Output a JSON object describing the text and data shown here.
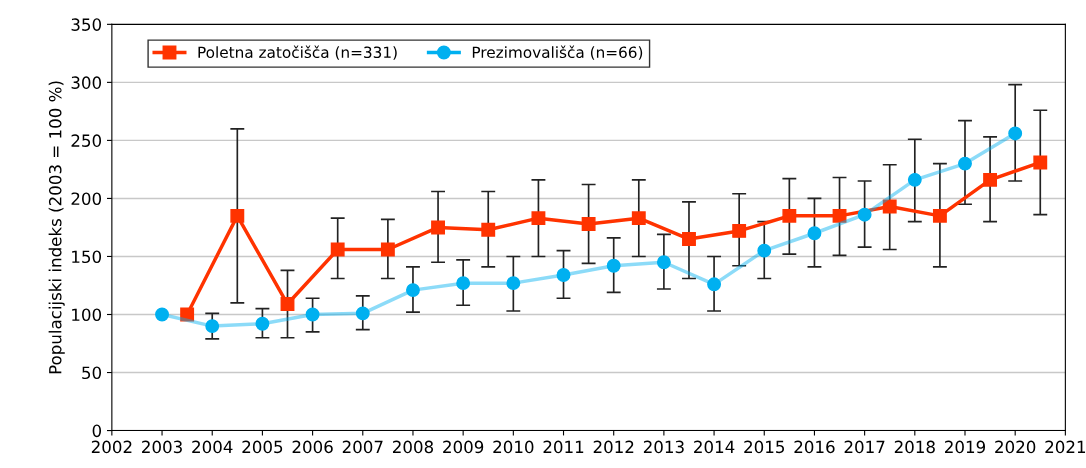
{
  "chart_data": {
    "type": "line",
    "ylabel": "Populacijski indeks (2003 = 100 %)",
    "xlim": [
      2002,
      2021
    ],
    "xticks": [
      2002,
      2003,
      2004,
      2005,
      2006,
      2007,
      2008,
      2009,
      2010,
      2011,
      2012,
      2013,
      2014,
      2015,
      2016,
      2017,
      2018,
      2019,
      2020,
      2021
    ],
    "ylim": [
      0,
      350
    ],
    "yticks": [
      0,
      50,
      100,
      150,
      200,
      250,
      300,
      350
    ],
    "grid": "y",
    "legend": "top left",
    "line_style": "solid",
    "series": [
      {
        "name": "Poletna zatočišča (n=331)",
        "color": "#ff3300",
        "marker": "square",
        "x": [
          2003.5,
          2004.5,
          2005.5,
          2006.5,
          2007.5,
          2008.5,
          2009.5,
          2010.5,
          2011.5,
          2012.5,
          2013.5,
          2014.5,
          2015.5,
          2016.5,
          2017.5,
          2018.5,
          2019.5,
          2020.5
        ],
        "values": [
          100,
          185,
          109,
          156,
          156,
          175,
          173,
          183,
          178,
          183,
          165,
          172,
          185,
          185,
          193,
          185,
          216,
          231
        ],
        "errors": [
          null,
          [
            110,
            260
          ],
          [
            80,
            138
          ],
          [
            131,
            183
          ],
          [
            131,
            182
          ],
          [
            145,
            206
          ],
          [
            141,
            206
          ],
          [
            150,
            216
          ],
          [
            144,
            212
          ],
          [
            150,
            216
          ],
          [
            131,
            197
          ],
          [
            142,
            204
          ],
          [
            152,
            217
          ],
          [
            151,
            218
          ],
          [
            156,
            229
          ],
          [
            141,
            230
          ],
          [
            180,
            253
          ],
          [
            186,
            276
          ]
        ]
      },
      {
        "name": "Prezimovališča (n=66)",
        "color": "#00b0f0",
        "marker": "circle",
        "x": [
          2003,
          2004,
          2005,
          2006,
          2007,
          2008,
          2009,
          2010,
          2011,
          2012,
          2013,
          2014,
          2015,
          2016,
          2017,
          2018,
          2019,
          2020
        ],
        "values": [
          100,
          90,
          92,
          100,
          101,
          121,
          127,
          127,
          134,
          142,
          145,
          126,
          155,
          170,
          186,
          216,
          230,
          256
        ],
        "errors": [
          null,
          [
            79,
            101
          ],
          [
            80,
            105
          ],
          [
            85,
            114
          ],
          [
            87,
            116
          ],
          [
            102,
            141
          ],
          [
            108,
            147
          ],
          [
            103,
            150
          ],
          [
            114,
            155
          ],
          [
            119,
            166
          ],
          [
            122,
            169
          ],
          [
            103,
            150
          ],
          [
            131,
            180
          ],
          [
            141,
            200
          ],
          [
            158,
            215
          ],
          [
            180,
            251
          ],
          [
            195,
            267
          ],
          [
            215,
            298
          ]
        ]
      }
    ]
  }
}
